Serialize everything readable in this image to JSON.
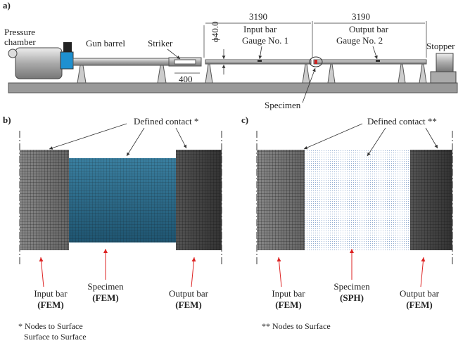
{
  "panel_a": {
    "label": "a)",
    "pressure_chamber": [
      "Pressure",
      "chamber"
    ],
    "gun_barrel": "Gun barrel",
    "striker": "Striker",
    "striker_length": "400",
    "diameter": "ϕ40.0",
    "input_length": "3190",
    "input_bar": "Input bar",
    "gauge_1": "Gauge No. 1",
    "output_length": "3190",
    "output_bar": "Output bar",
    "gauge_2": "Gauge No. 2",
    "stopper": "Stopper",
    "specimen": "Specimen"
  },
  "panel_b": {
    "label": "b)",
    "contact": "Defined contact *",
    "input_bar": [
      "Input bar",
      "(FEM)"
    ],
    "specimen": [
      "Specimen",
      "(FEM)"
    ],
    "output_bar": [
      "Output bar",
      "(FEM)"
    ],
    "footnote": [
      "* Nodes to Surface",
      "Surface to Surface"
    ]
  },
  "panel_c": {
    "label": "c)",
    "contact": "Defined contact **",
    "input_bar": [
      "Input bar",
      "(FEM)"
    ],
    "specimen": [
      "Specimen",
      "(SPH)"
    ],
    "output_bar": [
      "Output bar",
      "(FEM)"
    ],
    "footnote": [
      "** Nodes to Surface"
    ]
  }
}
